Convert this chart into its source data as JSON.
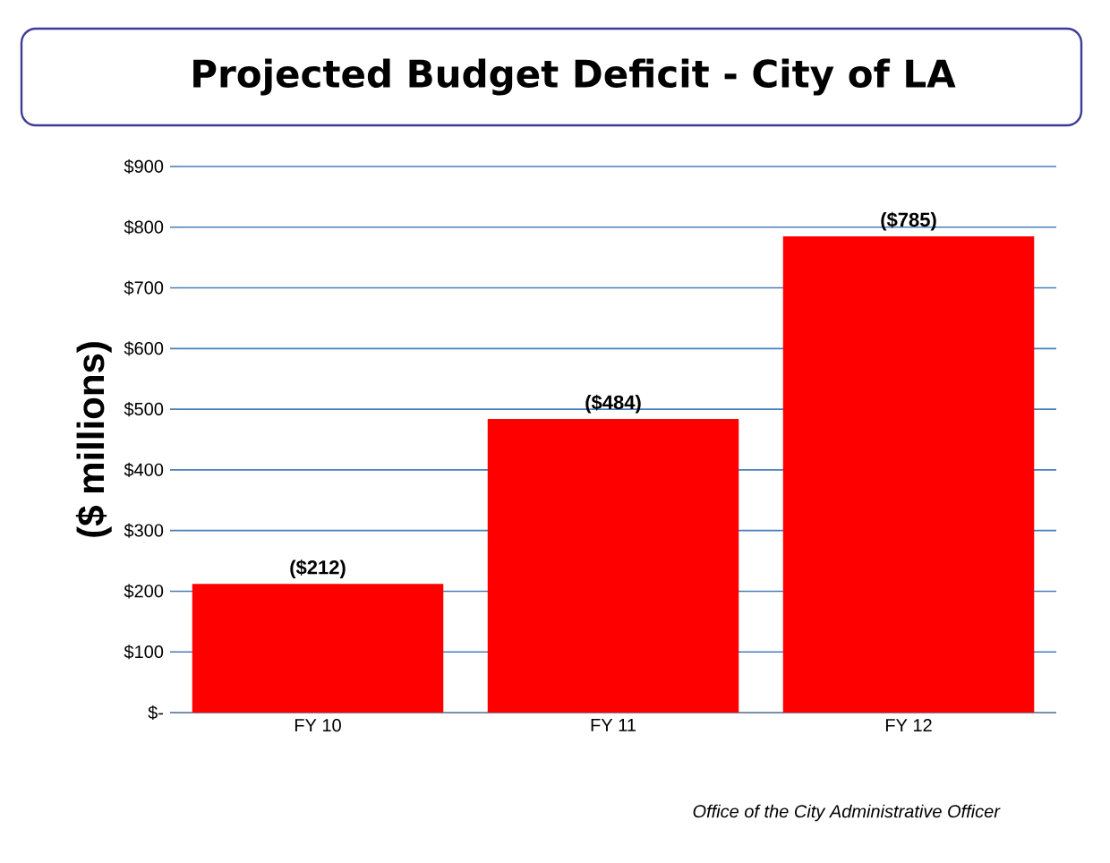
{
  "chart_data": {
    "type": "bar",
    "title": "Projected Budget Deficit - City of LA",
    "ylabel": "($ millions)",
    "categories": [
      "FY 10",
      "FY 11",
      "FY 12"
    ],
    "values": [
      212,
      484,
      785
    ],
    "color": "#ff0000",
    "value_labels": [
      "($212)",
      "($484)",
      "($785)"
    ],
    "ylim": [
      0,
      900
    ],
    "yticks": [
      {
        "value": 0,
        "label": "$-"
      },
      {
        "value": 100,
        "label": "$100"
      },
      {
        "value": 200,
        "label": "$200"
      },
      {
        "value": 300,
        "label": "$300"
      },
      {
        "value": 400,
        "label": "$400"
      },
      {
        "value": 500,
        "label": "$500"
      },
      {
        "value": 600,
        "label": "$600"
      },
      {
        "value": 700,
        "label": "$700"
      },
      {
        "value": 800,
        "label": "$800"
      },
      {
        "value": 900,
        "label": "$900"
      }
    ],
    "grid": "y",
    "annotations": [
      "Office of the City Administrative Officer"
    ]
  }
}
